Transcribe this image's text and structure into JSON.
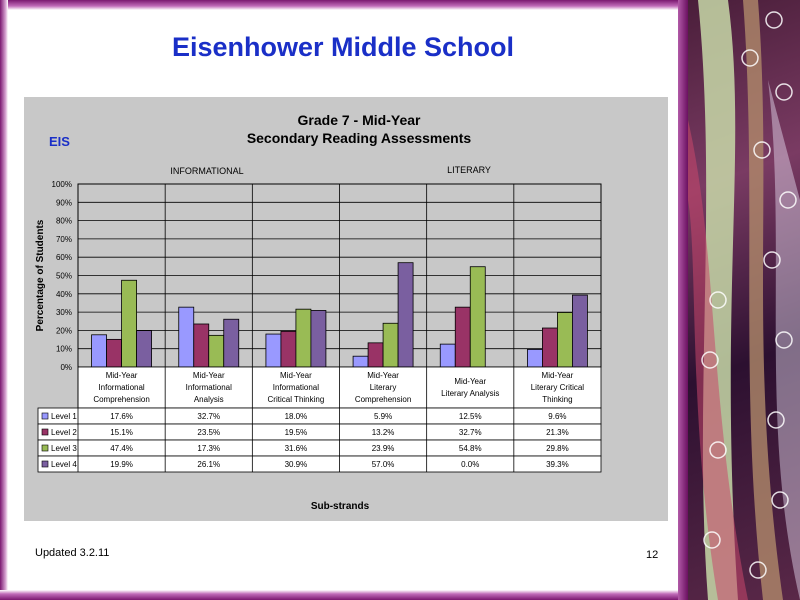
{
  "slide": {
    "title": "Eisenhower Middle School",
    "footer_left": "Updated  3.2.11",
    "page_number": "12"
  },
  "chart_data": {
    "type": "bar",
    "title": "Grade 7 - Mid-Year",
    "subtitle": "Secondary Reading Assessments",
    "tag": "EIS",
    "group_labels": [
      "INFORMATIONAL",
      "LITERARY"
    ],
    "categories": [
      [
        "Mid-Year",
        "Informational",
        "Comprehension"
      ],
      [
        "Mid-Year",
        "Informational",
        "Analysis"
      ],
      [
        "Mid-Year",
        "Informational",
        "Critical Thinking"
      ],
      [
        "Mid-Year",
        "Literary",
        "Comprehension"
      ],
      [
        "Mid-Year",
        "Literary Analysis"
      ],
      [
        "Mid-Year",
        "Literary Critical",
        "Thinking"
      ]
    ],
    "ylabel": "Percentage of Students",
    "xlabel": "Sub-strands",
    "ylim": [
      0,
      100
    ],
    "yticks": [
      "0%",
      "10%",
      "20%",
      "30%",
      "40%",
      "50%",
      "60%",
      "70%",
      "80%",
      "90%",
      "100%"
    ],
    "grid": true,
    "series": [
      {
        "name": "Level 1",
        "color": "#9999ff",
        "values": [
          17.6,
          32.7,
          18.0,
          5.9,
          12.5,
          9.6
        ],
        "labels": [
          "17.6%",
          "32.7%",
          "18.0%",
          "5.9%",
          "12.5%",
          "9.6%"
        ]
      },
      {
        "name": "Level 2",
        "color": "#993366",
        "values": [
          15.1,
          23.5,
          19.5,
          13.2,
          32.7,
          21.3
        ],
        "labels": [
          "15.1%",
          "23.5%",
          "19.5%",
          "13.2%",
          "32.7%",
          "21.3%"
        ]
      },
      {
        "name": "Level 3",
        "color": "#99bb55",
        "values": [
          47.4,
          17.3,
          31.6,
          23.9,
          54.8,
          29.8
        ],
        "labels": [
          "47.4%",
          "17.3%",
          "31.6%",
          "23.9%",
          "54.8%",
          "29.8%"
        ]
      },
      {
        "name": "Level 4",
        "color": "#7a5fa0",
        "values": [
          19.9,
          26.1,
          30.9,
          57.0,
          0.0,
          39.3
        ],
        "labels": [
          "19.9%",
          "26.1%",
          "30.9%",
          "57.0%",
          "0.0%",
          "39.3%"
        ]
      }
    ]
  }
}
